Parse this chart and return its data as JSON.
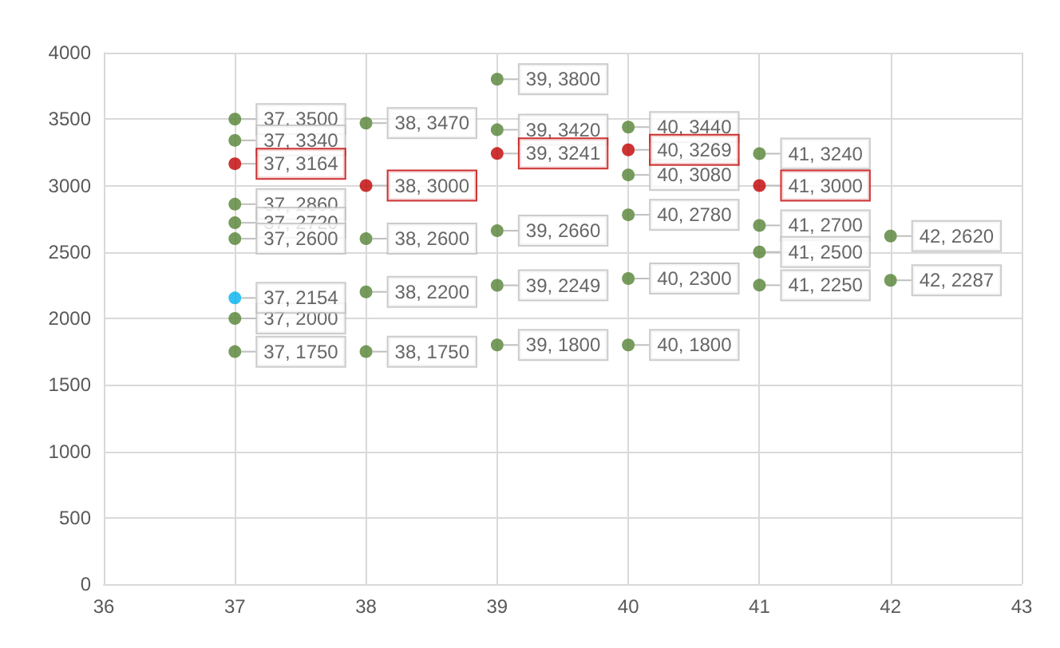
{
  "chart_data": {
    "type": "scatter",
    "marker": "circle",
    "grid": true,
    "xlim": [
      36,
      43
    ],
    "xticks": [
      36,
      37,
      38,
      39,
      40,
      41,
      42,
      43
    ],
    "ylim": [
      0,
      4000
    ],
    "yticks": [
      0,
      500,
      1000,
      1500,
      2000,
      2500,
      3000,
      3500,
      4000
    ],
    "series": [
      {
        "color": "#548235",
        "x": [
          37,
          37,
          37,
          37,
          37,
          37,
          37,
          38,
          38,
          38,
          38,
          39,
          39,
          39,
          39,
          39,
          40,
          40,
          40,
          40,
          40,
          41,
          41,
          41,
          41,
          42,
          42
        ],
        "values": [
          3500,
          3340,
          2860,
          2720,
          2600,
          2000,
          1750,
          3470,
          2600,
          2200,
          1750,
          3800,
          3420,
          2660,
          2249,
          1800,
          3440,
          3080,
          2780,
          2300,
          1800,
          3240,
          2700,
          2500,
          2250,
          2620,
          2287
        ],
        "value_labels": [
          "37, 3500",
          "37, 3340",
          "37, 2860",
          "37, 2720",
          "37, 2600",
          "37, 2000",
          "37, 1750",
          "38, 3470",
          "38, 2600",
          "38, 2200",
          "38, 1750",
          "39, 3800",
          "39, 3420",
          "39, 2660",
          "39, 2249",
          "39, 1800",
          "40, 3440",
          "40, 3080",
          "40, 2780",
          "40, 2300",
          "40, 1800",
          "41, 3240",
          "41, 2700",
          "41, 2500",
          "41, 2250",
          "42, 2620",
          "42, 2287"
        ]
      },
      {
        "color": "#c00000",
        "x": [
          37,
          38,
          39,
          40,
          41
        ],
        "values": [
          3164,
          3000,
          3241,
          3269,
          3000
        ],
        "value_labels": [
          "37, 3164",
          "38, 3000",
          "39, 3241",
          "40, 3269",
          "41, 3000"
        ]
      },
      {
        "color": "#00b0f0",
        "x": [
          37
        ],
        "values": [
          2154
        ],
        "value_labels": [
          "37, 2154"
        ]
      }
    ]
  }
}
